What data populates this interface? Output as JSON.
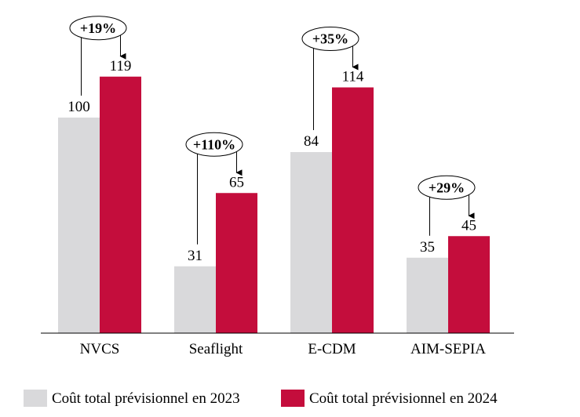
{
  "chart_data": {
    "type": "bar",
    "categories": [
      "NVCS",
      "Seaflight",
      "E-CDM",
      "AIM-SEPIA"
    ],
    "series": [
      {
        "name": "Coût total prévisionnel en 2023",
        "values": [
          100,
          31,
          84,
          35
        ],
        "color": "#d9d9db"
      },
      {
        "name": "Coût total prévisionnel en 2024",
        "values": [
          119,
          65,
          114,
          45
        ],
        "color": "#c40d3c"
      }
    ],
    "value_labels": [
      [
        "100",
        "31",
        "84",
        "35"
      ],
      [
        "119",
        "65",
        "114",
        "45"
      ]
    ],
    "changes": [
      "+19%",
      "+110%",
      "+35%",
      "+29%"
    ],
    "ylim": [
      0,
      124
    ],
    "grid": false,
    "legend_position": "bottom"
  }
}
